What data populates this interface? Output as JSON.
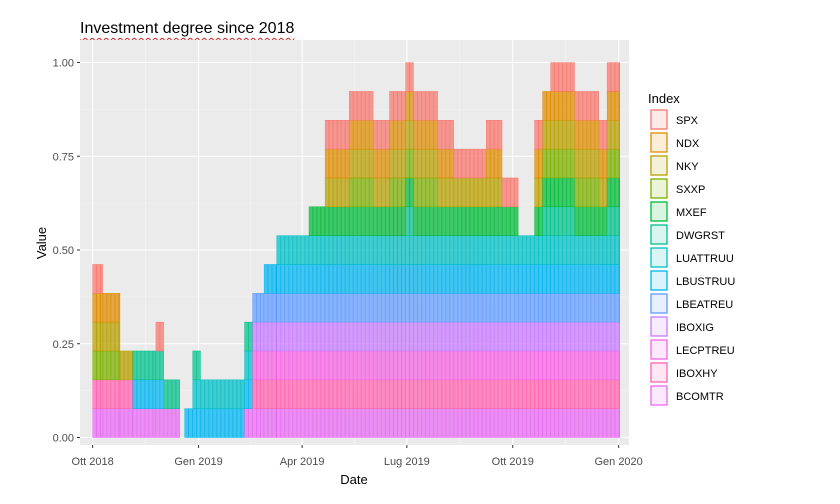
{
  "chart_data": {
    "type": "bar",
    "stacked": true,
    "title": "Investment degree since 2018",
    "xlabel": "Date",
    "ylabel": "Value",
    "ylim": [
      -0.02,
      1.06
    ],
    "x_range": [
      "2018-09-20",
      "2020-01-10"
    ],
    "y_ticks": [
      0.0,
      0.25,
      0.5,
      0.75,
      1.0
    ],
    "y_tick_labels": [
      "0.00",
      "0.25",
      "0.50",
      "0.75",
      "1.00"
    ],
    "x_ticks": [
      "2018-10-01",
      "2019-01-01",
      "2019-04-01",
      "2019-07-01",
      "2019-10-01",
      "2020-01-01"
    ],
    "x_tick_labels": [
      "Ott 2018",
      "Gen 2019",
      "Apr 2019",
      "Lug 2019",
      "Ott 2019",
      "Gen 2020"
    ],
    "grid": true,
    "legend": {
      "title": "Index",
      "position": "right"
    },
    "layer_height": 0.0769,
    "series": [
      {
        "name": "SPX",
        "color": "#F8766D"
      },
      {
        "name": "NDX",
        "color": "#DE8C00"
      },
      {
        "name": "NKY",
        "color": "#B79F00"
      },
      {
        "name": "SXXP",
        "color": "#7CAE00"
      },
      {
        "name": "MXEF",
        "color": "#00BA38"
      },
      {
        "name": "DWGRST",
        "color": "#00C08B"
      },
      {
        "name": "LUATTRUU",
        "color": "#00BFC4"
      },
      {
        "name": "LBUSTRUU",
        "color": "#00B4F0"
      },
      {
        "name": "LBEATREU",
        "color": "#619CFF"
      },
      {
        "name": "IBOXIG",
        "color": "#C77CFF"
      },
      {
        "name": "LECPTREU",
        "color": "#F564E3"
      },
      {
        "name": "IBOXHY",
        "color": "#FF64B0"
      },
      {
        "name": "BCOMTR",
        "color": "#E76BF3"
      }
    ],
    "period_days": 3.5,
    "values": [
      {
        "from": "2018-10-01",
        "to": "2018-10-10",
        "layers": [
          "BCOMTR",
          "IBOXHY",
          "SXXP",
          "NKY",
          "NDX",
          "SPX"
        ]
      },
      {
        "from": "2018-10-10",
        "to": "2018-10-25",
        "layers": [
          "BCOMTR",
          "IBOXHY",
          "SXXP",
          "NKY",
          "NDX"
        ]
      },
      {
        "from": "2018-10-25",
        "to": "2018-11-05",
        "layers": [
          "BCOMTR",
          "IBOXHY",
          "NKY"
        ]
      },
      {
        "from": "2018-11-05",
        "to": "2018-11-25",
        "layers": [
          "BCOMTR",
          "LBUSTRUU",
          "DWGRST"
        ]
      },
      {
        "from": "2018-11-25",
        "to": "2018-12-02",
        "layers": [
          "BCOMTR",
          "LBUSTRUU",
          "DWGRST",
          "SPX"
        ]
      },
      {
        "from": "2018-12-02",
        "to": "2018-12-16",
        "layers": [
          "BCOMTR",
          "DWGRST"
        ]
      },
      {
        "from": "2018-12-16",
        "to": "2018-12-20",
        "layers": []
      },
      {
        "from": "2018-12-20",
        "to": "2018-12-27",
        "layers": [
          "LBUSTRUU"
        ]
      },
      {
        "from": "2018-12-27",
        "to": "2019-01-03",
        "layers": [
          "LBUSTRUU",
          "LUATTRUU",
          "DWGRST"
        ]
      },
      {
        "from": "2019-01-03",
        "to": "2019-01-10",
        "layers": [
          "LBUSTRUU",
          "LUATTRUU"
        ]
      },
      {
        "from": "2019-01-10",
        "to": "2019-02-10",
        "layers": [
          "LBUSTRUU",
          "LUATTRUU"
        ]
      },
      {
        "from": "2019-02-10",
        "to": "2019-02-17",
        "layers": [
          "BCOMTR",
          "LBUSTRUU",
          "LUATTRUU",
          "DWGRST"
        ]
      },
      {
        "from": "2019-02-17",
        "to": "2019-02-27",
        "layers": [
          "BCOMTR",
          "IBOXHY",
          "LECPTREU",
          "IBOXIG",
          "LBEATREU"
        ]
      },
      {
        "from": "2019-02-27",
        "to": "2019-03-10",
        "layers": [
          "BCOMTR",
          "IBOXHY",
          "LECPTREU",
          "IBOXIG",
          "LBEATREU",
          "LBUSTRUU"
        ]
      },
      {
        "from": "2019-03-10",
        "to": "2019-03-17",
        "layers": [
          "BCOMTR",
          "IBOXHY",
          "LECPTREU",
          "IBOXIG",
          "LBEATREU",
          "LBUSTRUU",
          "LUATTRUU"
        ]
      },
      {
        "from": "2019-03-17",
        "to": "2019-04-07",
        "layers": [
          "BCOMTR",
          "IBOXHY",
          "LECPTREU",
          "IBOXIG",
          "LBEATREU",
          "LBUSTRUU",
          "LUATTRUU"
        ]
      },
      {
        "from": "2019-04-07",
        "to": "2019-04-21",
        "layers": [
          "BCOMTR",
          "IBOXHY",
          "LECPTREU",
          "IBOXIG",
          "LBEATREU",
          "LBUSTRUU",
          "LUATTRUU",
          "MXEF"
        ]
      },
      {
        "from": "2019-04-21",
        "to": "2019-05-12",
        "layers": [
          "BCOMTR",
          "IBOXHY",
          "LECPTREU",
          "IBOXIG",
          "LBEATREU",
          "LBUSTRUU",
          "LUATTRUU",
          "MXEF",
          "NKY",
          "NDX",
          "SPX"
        ]
      },
      {
        "from": "2019-05-12",
        "to": "2019-06-02",
        "layers": [
          "BCOMTR",
          "IBOXHY",
          "LECPTREU",
          "IBOXIG",
          "LBEATREU",
          "LBUSTRUU",
          "LUATTRUU",
          "MXEF",
          "SXXP",
          "NKY",
          "NDX",
          "SPX"
        ]
      },
      {
        "from": "2019-06-02",
        "to": "2019-06-16",
        "layers": [
          "BCOMTR",
          "IBOXHY",
          "LECPTREU",
          "IBOXIG",
          "LBEATREU",
          "LBUSTRUU",
          "LUATTRUU",
          "MXEF",
          "NKY",
          "NDX",
          "SPX"
        ]
      },
      {
        "from": "2019-06-16",
        "to": "2019-06-30",
        "layers": [
          "BCOMTR",
          "IBOXHY",
          "LECPTREU",
          "IBOXIG",
          "LBEATREU",
          "LBUSTRUU",
          "LUATTRUU",
          "MXEF",
          "SXXP",
          "NKY",
          "NDX",
          "SPX"
        ]
      },
      {
        "from": "2019-06-30",
        "to": "2019-07-07",
        "layers": [
          "BCOMTR",
          "IBOXHY",
          "LECPTREU",
          "IBOXIG",
          "LBEATREU",
          "LBUSTRUU",
          "LUATTRUU",
          "DWGRST",
          "MXEF",
          "SXXP",
          "NKY",
          "NDX",
          "SPX"
        ]
      },
      {
        "from": "2019-07-07",
        "to": "2019-07-28",
        "layers": [
          "BCOMTR",
          "IBOXHY",
          "LECPTREU",
          "IBOXIG",
          "LBEATREU",
          "LBUSTRUU",
          "LUATTRUU",
          "MXEF",
          "SXXP",
          "NKY",
          "NDX",
          "SPX"
        ]
      },
      {
        "from": "2019-07-28",
        "to": "2019-08-11",
        "layers": [
          "BCOMTR",
          "IBOXHY",
          "LECPTREU",
          "IBOXIG",
          "LBEATREU",
          "LBUSTRUU",
          "LUATTRUU",
          "MXEF",
          "NKY",
          "NDX",
          "SPX"
        ]
      },
      {
        "from": "2019-08-11",
        "to": "2019-09-08",
        "layers": [
          "BCOMTR",
          "IBOXHY",
          "LECPTREU",
          "IBOXIG",
          "LBEATREU",
          "LBUSTRUU",
          "LUATTRUU",
          "MXEF",
          "NKY",
          "SPX"
        ]
      },
      {
        "from": "2019-09-08",
        "to": "2019-09-22",
        "layers": [
          "BCOMTR",
          "IBOXHY",
          "LECPTREU",
          "IBOXIG",
          "LBEATREU",
          "LBUSTRUU",
          "LUATTRUU",
          "MXEF",
          "NKY",
          "NDX",
          "SPX"
        ]
      },
      {
        "from": "2019-09-22",
        "to": "2019-10-06",
        "layers": [
          "BCOMTR",
          "IBOXHY",
          "LECPTREU",
          "IBOXIG",
          "LBEATREU",
          "LBUSTRUU",
          "LUATTRUU",
          "MXEF",
          "SPX"
        ]
      },
      {
        "from": "2019-10-06",
        "to": "2019-10-20",
        "layers": [
          "BCOMTR",
          "IBOXHY",
          "LECPTREU",
          "IBOXIG",
          "LBEATREU",
          "LBUSTRUU",
          "LUATTRUU"
        ]
      },
      {
        "from": "2019-10-20",
        "to": "2019-10-27",
        "layers": [
          "BCOMTR",
          "IBOXHY",
          "LECPTREU",
          "IBOXIG",
          "LBEATREU",
          "LBUSTRUU",
          "LUATTRUU",
          "MXEF",
          "NKY",
          "NDX",
          "SPX"
        ]
      },
      {
        "from": "2019-10-27",
        "to": "2019-11-03",
        "layers": [
          "BCOMTR",
          "IBOXHY",
          "LECPTREU",
          "IBOXIG",
          "LBEATREU",
          "LBUSTRUU",
          "LUATTRUU",
          "DWGRST",
          "MXEF",
          "SXXP",
          "NKY",
          "NDX"
        ]
      },
      {
        "from": "2019-11-03",
        "to": "2019-11-24",
        "layers": [
          "BCOMTR",
          "IBOXHY",
          "LECPTREU",
          "IBOXIG",
          "LBEATREU",
          "LBUSTRUU",
          "LUATTRUU",
          "DWGRST",
          "MXEF",
          "SXXP",
          "NKY",
          "NDX",
          "SPX"
        ]
      },
      {
        "from": "2019-11-24",
        "to": "2019-12-15",
        "layers": [
          "BCOMTR",
          "IBOXHY",
          "LECPTREU",
          "IBOXIG",
          "LBEATREU",
          "LBUSTRUU",
          "LUATTRUU",
          "MXEF",
          "SXXP",
          "NKY",
          "NDX",
          "SPX"
        ]
      },
      {
        "from": "2019-12-15",
        "to": "2019-12-22",
        "layers": [
          "BCOMTR",
          "IBOXHY",
          "LECPTREU",
          "IBOXIG",
          "LBEATREU",
          "LBUSTRUU",
          "LUATTRUU",
          "MXEF",
          "NKY",
          "NDX",
          "SPX"
        ]
      },
      {
        "from": "2019-12-22",
        "to": "2020-01-02",
        "layers": [
          "BCOMTR",
          "IBOXHY",
          "LECPTREU",
          "IBOXIG",
          "LBEATREU",
          "LBUSTRUU",
          "LUATTRUU",
          "DWGRST",
          "MXEF",
          "SXXP",
          "NKY",
          "NDX",
          "SPX"
        ]
      }
    ]
  }
}
